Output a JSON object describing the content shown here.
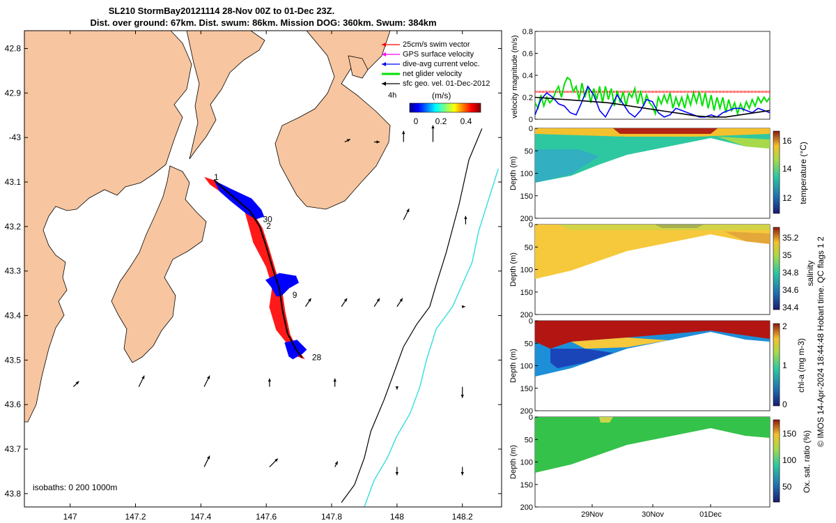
{
  "title": {
    "line1": "SL210 StormBay20121114 28-Nov 00Z to 01-Dec 23Z.",
    "line2": "Dist. over ground: 67km. Dist. swum: 86km. Mission DOG: 360km. Swum: 384km"
  },
  "credit": "© IMOS 14-Apr-2024 18:44:48 Hobart time. QC flags 1 2",
  "colors": {
    "land": "#f7c59f",
    "glider_track": "#000000",
    "swim": "#ff0000",
    "gps": "#ff00ff",
    "dive_avg": "#0000ff",
    "net": "#00e000",
    "isobath_200": "#000000",
    "isobath_1000": "#33dddd"
  },
  "chart_data": [
    {
      "type": "map",
      "lon_ticks": [
        147,
        147.2,
        147.4,
        147.6,
        147.8,
        148,
        148.2
      ],
      "lon_tick_labels": [
        "147",
        "147.2",
        "147.4",
        "147.6",
        "147.8",
        "148",
        "148.2"
      ],
      "lat_ticks": [
        -42.8,
        -42.9,
        -43,
        -43.1,
        -43.2,
        -43.3,
        -43.4,
        -43.5,
        -43.6,
        -43.7,
        -43.8
      ],
      "lat_tick_labels": [
        "42.8",
        "42.9",
        "-43",
        "43.1",
        "43.2",
        "43.3",
        "43.4",
        "43.5",
        "43.6",
        "43.7",
        "43.8"
      ],
      "lon_range": [
        146.86,
        148.32
      ],
      "lat_range": [
        -42.76,
        -43.83
      ],
      "legend": {
        "items": [
          "25cm/s swim vector",
          "GPS surface velocity",
          "dive-avg current veloc.",
          "net glider velocity",
          "sfc geo. vel. 01-Dec-2012"
        ],
        "note": "4h",
        "colorbar_title": "(m/s)",
        "colorbar_ticks": [
          "0",
          "0.2",
          "0.4"
        ],
        "placement": "top-right"
      },
      "isobaths_label": "isobaths: 0   200  1000m",
      "track_labels": [
        {
          "text": "1",
          "lon": 147.44,
          "lat": -43.095
        },
        {
          "text": "30",
          "lon": 147.59,
          "lat": -43.19
        },
        {
          "text": "2",
          "lon": 147.6,
          "lat": -43.205
        },
        {
          "text": "9",
          "lon": 147.68,
          "lat": -43.36
        },
        {
          "text": "28",
          "lon": 147.74,
          "lat": -43.5
        }
      ],
      "track": [
        [
          147.44,
          -43.095
        ],
        [
          147.47,
          -43.115
        ],
        [
          147.51,
          -43.14
        ],
        [
          147.55,
          -43.165
        ],
        [
          147.58,
          -43.2
        ],
        [
          147.6,
          -43.245
        ],
        [
          147.62,
          -43.295
        ],
        [
          147.64,
          -43.34
        ],
        [
          147.65,
          -43.39
        ],
        [
          147.665,
          -43.44
        ],
        [
          147.69,
          -43.475
        ],
        [
          147.71,
          -43.495
        ]
      ],
      "isobath_200": [
        [
          147.83,
          -43.82
        ],
        [
          147.87,
          -43.78
        ],
        [
          147.9,
          -43.72
        ],
        [
          147.92,
          -43.66
        ],
        [
          147.96,
          -43.59
        ],
        [
          147.99,
          -43.53
        ],
        [
          148.02,
          -43.47
        ],
        [
          148.06,
          -43.42
        ],
        [
          148.1,
          -43.38
        ],
        [
          148.12,
          -43.33
        ],
        [
          148.15,
          -43.26
        ],
        [
          148.19,
          -43.15
        ],
        [
          148.22,
          -43.05
        ],
        [
          148.26,
          -42.98
        ]
      ],
      "isobath_1000": [
        [
          147.9,
          -43.83
        ],
        [
          147.93,
          -43.77
        ],
        [
          147.97,
          -43.72
        ],
        [
          148.0,
          -43.67
        ],
        [
          148.04,
          -43.62
        ],
        [
          148.07,
          -43.56
        ],
        [
          148.09,
          -43.5
        ],
        [
          148.12,
          -43.43
        ],
        [
          148.17,
          -43.38
        ],
        [
          148.2,
          -43.33
        ],
        [
          148.23,
          -43.28
        ],
        [
          148.25,
          -43.21
        ],
        [
          148.28,
          -43.14
        ],
        [
          148.31,
          -43.07
        ]
      ],
      "geo_arrows": [
        {
          "lon": 147.84,
          "lat": -43.01,
          "u": 0.2,
          "v": 0.1
        },
        {
          "lon": 147.93,
          "lat": -43.01,
          "u": 0.2,
          "v": 0.0
        },
        {
          "lon": 148.02,
          "lat": -43.01,
          "u": 0.0,
          "v": 0.4
        },
        {
          "lon": 148.11,
          "lat": -43.01,
          "u": 0.0,
          "v": 0.6
        },
        {
          "lon": 148.02,
          "lat": -43.185,
          "u": 0.2,
          "v": 0.4
        },
        {
          "lon": 148.21,
          "lat": -43.195,
          "u": 0.0,
          "v": 0.3
        },
        {
          "lon": 147.83,
          "lat": -43.38,
          "u": 0.2,
          "v": 0.3
        },
        {
          "lon": 147.93,
          "lat": -43.38,
          "u": 0.2,
          "v": 0.3
        },
        {
          "lon": 147.72,
          "lat": -43.38,
          "u": 0.2,
          "v": 0.3
        },
        {
          "lon": 148.0,
          "lat": -43.38,
          "u": 0.2,
          "v": 0.3
        },
        {
          "lon": 148.2,
          "lat": -43.38,
          "u": 0.1,
          "v": 0.0
        },
        {
          "lon": 147.01,
          "lat": -43.56,
          "u": 0.2,
          "v": 0.2
        },
        {
          "lon": 147.21,
          "lat": -43.56,
          "u": 0.2,
          "v": 0.4
        },
        {
          "lon": 147.41,
          "lat": -43.56,
          "u": 0.2,
          "v": 0.4
        },
        {
          "lon": 147.61,
          "lat": -43.56,
          "u": 0.0,
          "v": 0.3
        },
        {
          "lon": 147.81,
          "lat": -43.56,
          "u": 0.0,
          "v": 0.3
        },
        {
          "lon": 148.0,
          "lat": -43.56,
          "u": 0.0,
          "v": -0.1
        },
        {
          "lon": 148.2,
          "lat": -43.56,
          "u": 0.0,
          "v": -0.4
        },
        {
          "lon": 147.41,
          "lat": -43.74,
          "u": 0.2,
          "v": 0.4
        },
        {
          "lon": 147.61,
          "lat": -43.74,
          "u": 0.3,
          "v": 0.3
        },
        {
          "lon": 147.81,
          "lat": -43.74,
          "u": 0.1,
          "v": 0.2
        },
        {
          "lon": 148.0,
          "lat": -43.74,
          "u": 0.0,
          "v": -0.3
        },
        {
          "lon": 148.2,
          "lat": -43.74,
          "u": 0.0,
          "v": -0.3
        }
      ]
    },
    {
      "type": "line",
      "ylabel": "velocity magnitude (m/s)",
      "ylim": [
        0,
        0.8
      ],
      "y_ticks": [
        0,
        0.2,
        0.4,
        0.6,
        0.8
      ],
      "y_tick_labels": [
        "0",
        "0.2",
        "0.4",
        "0.6",
        "0.8"
      ],
      "xlim": [
        0,
        4
      ],
      "grid": false,
      "series": [
        {
          "color": "#ff0000",
          "x": [
            0,
            4
          ],
          "values": [
            0.25,
            0.25
          ],
          "style": "dotted"
        },
        {
          "color": "#00e000",
          "x": [
            0,
            0.05,
            0.1,
            0.15,
            0.2,
            0.25,
            0.3,
            0.35,
            0.4,
            0.45,
            0.5,
            0.55,
            0.6,
            0.65,
            0.7,
            0.75,
            0.8,
            0.85,
            0.9,
            0.95,
            1.0,
            1.05,
            1.1,
            1.15,
            1.2,
            1.25,
            1.3,
            1.35,
            1.4,
            1.45,
            1.5,
            1.55,
            1.6,
            1.65,
            1.7,
            1.75,
            1.8,
            1.85,
            1.9,
            1.95,
            2.0,
            2.05,
            2.1,
            2.15,
            2.2,
            2.25,
            2.3,
            2.35,
            2.4,
            2.45,
            2.5,
            2.55,
            2.6,
            2.65,
            2.7,
            2.75,
            2.8,
            2.85,
            2.9,
            2.95,
            3.0,
            3.05,
            3.1,
            3.15,
            3.2,
            3.25,
            3.3,
            3.35,
            3.4,
            3.45,
            3.5,
            3.55,
            3.6,
            3.65,
            3.7,
            3.75,
            3.8,
            3.85,
            3.9,
            3.95,
            4.0
          ],
          "values": [
            0.15,
            0.1,
            0.22,
            0.12,
            0.2,
            0.15,
            0.18,
            0.25,
            0.3,
            0.2,
            0.32,
            0.38,
            0.36,
            0.25,
            0.3,
            0.18,
            0.33,
            0.2,
            0.3,
            0.15,
            0.28,
            0.18,
            0.3,
            0.15,
            0.3,
            0.18,
            0.28,
            0.12,
            0.26,
            0.15,
            0.25,
            0.12,
            0.24,
            0.2,
            0.28,
            0.14,
            0.26,
            0.12,
            0.22,
            0.15,
            0.12,
            0.05,
            0.2,
            0.14,
            0.22,
            0.15,
            0.24,
            0.1,
            0.2,
            0.12,
            0.2,
            0.1,
            0.22,
            0.13,
            0.24,
            0.15,
            0.25,
            0.12,
            0.24,
            0.1,
            0.22,
            0.08,
            0.2,
            0.1,
            0.2,
            0.06,
            0.18,
            0.08,
            0.15,
            0.05,
            0.14,
            0.08,
            0.16,
            0.1,
            0.18,
            0.12,
            0.2,
            0.15,
            0.2,
            0.16,
            0.2
          ]
        },
        {
          "color": "#0000ff",
          "x": [
            0,
            0.1,
            0.2,
            0.3,
            0.4,
            0.5,
            0.6,
            0.7,
            0.8,
            0.9,
            1.0,
            1.1,
            1.2,
            1.3,
            1.4,
            1.5,
            1.6,
            1.7,
            1.8,
            1.9,
            2.0,
            2.1,
            2.2,
            2.3,
            2.4,
            2.5,
            2.6,
            2.7,
            2.8,
            2.9,
            3.0,
            3.1,
            3.2,
            3.3,
            3.4,
            3.5,
            3.6,
            3.7,
            3.8,
            3.9,
            4.0
          ],
          "values": [
            0.04,
            0.18,
            0.24,
            0.2,
            0.14,
            0.12,
            0.06,
            0.04,
            0.16,
            0.3,
            0.22,
            0.08,
            0.02,
            0.12,
            0.22,
            0.14,
            0.06,
            0.02,
            0.08,
            0.18,
            0.16,
            0.06,
            0.02,
            0.04,
            0.1,
            0.08,
            0.06,
            0.04,
            0.02,
            0.02,
            0.04,
            0.02,
            0.06,
            0.08,
            0.1,
            0.1,
            0.08,
            0.06,
            0.1,
            0.08,
            0.06
          ]
        },
        {
          "color": "#000000",
          "x": [
            0,
            0.25,
            0.5,
            0.75,
            1.0,
            1.25,
            1.5,
            1.75,
            2.0,
            2.25,
            2.5,
            2.75,
            3.0,
            3.25,
            3.5,
            3.75,
            4.0
          ],
          "values": [
            0.2,
            0.19,
            0.18,
            0.17,
            0.16,
            0.15,
            0.13,
            0.11,
            0.09,
            0.07,
            0.05,
            0.03,
            0.02,
            0.02,
            0.04,
            0.06,
            0.08
          ]
        }
      ]
    },
    {
      "type": "heatmap",
      "ylabel": "Depth (m)",
      "colorbar_label": "temperature (°C)",
      "colorbar_ticks": [
        "12",
        "14",
        "16"
      ],
      "clim": [
        11,
        16.5
      ],
      "ylim": [
        0,
        200
      ],
      "y_tick_labels": [
        "0",
        "50",
        "100",
        "150",
        "200"
      ],
      "surface_color": "#f0c020",
      "deep_color": "#2ec8a0"
    },
    {
      "type": "heatmap",
      "ylabel": "Depth (m)",
      "colorbar_label": "salinity",
      "colorbar_ticks": [
        "34.4",
        "34.6",
        "34.8",
        "35",
        "35.2"
      ],
      "clim": [
        34.35,
        35.3
      ],
      "ylim": [
        0,
        200
      ],
      "y_tick_labels": [
        "0",
        "50",
        "100",
        "150",
        "200"
      ]
    },
    {
      "type": "heatmap",
      "ylabel": "Depth (m)",
      "colorbar_label": "chl-a (mg m-3)",
      "colorbar_ticks": [
        "0",
        "1",
        "2"
      ],
      "clim": [
        0,
        2
      ],
      "ylim": [
        0,
        200
      ],
      "y_tick_labels": [
        "0",
        "50",
        "100",
        "150",
        "200"
      ]
    },
    {
      "type": "heatmap",
      "ylabel": "Depth (m)",
      "colorbar_label": "Ox. sat. ratio (%)",
      "colorbar_ticks": [
        "50",
        "100",
        "150"
      ],
      "clim": [
        20,
        175
      ],
      "ylim": [
        0,
        200
      ],
      "y_tick_labels": [
        "0",
        "50",
        "100",
        "150",
        "200"
      ],
      "x_tick_labels": [
        "29Nov",
        "30Nov",
        "01Dec"
      ]
    }
  ]
}
